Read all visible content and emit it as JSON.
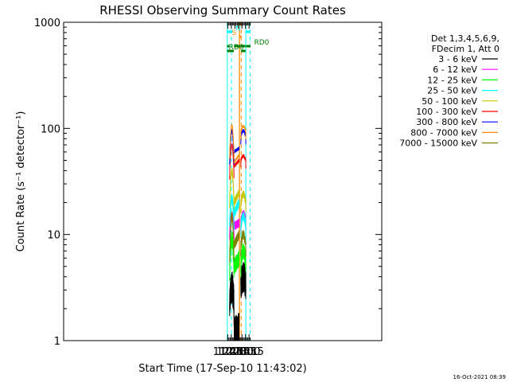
{
  "chart_data": {
    "type": "line",
    "title": "RHESSI Observing Summary Count Rates",
    "xlabel": "Start Time (17-Sep-10 11:43:02)",
    "ylabel": "Count Rate (s⁻¹ detector⁻¹)",
    "yscale": "log",
    "ylim": [
      1,
      1000
    ],
    "xlim_minutes": [
      11.73,
      1355.5
    ],
    "x_unit": "minutes of day (UT)",
    "x_ticks": [
      {
        "label": "11:45",
        "minute": 705
      },
      {
        "label": "12:00",
        "minute": 720
      },
      {
        "label": "12:15",
        "minute": 735
      },
      {
        "label": "12:30",
        "minute": 750
      },
      {
        "label": "12:45",
        "minute": 765
      },
      {
        "label": "13:00",
        "minute": 780
      },
      {
        "label": "13:15",
        "minute": 795
      }
    ],
    "y_ticks": [
      {
        "label": "1",
        "value": 1
      },
      {
        "label": "10",
        "value": 10
      },
      {
        "label": "100",
        "value": 100
      },
      {
        "label": "1000",
        "value": 1000
      }
    ],
    "legend_header": [
      "Det 1,3,4,5,6,9,",
      "FDecim 1, Att 0"
    ],
    "legend_position": "right",
    "timestamp": "16-Oct-2021 08:39",
    "grid": false,
    "segments_minutes": [
      [
        713.0,
        731.5
      ],
      [
        732.0,
        753.0
      ],
      [
        760.0,
        781.5
      ]
    ],
    "series": [
      {
        "name": "3 - 6 keV",
        "color": "#000000",
        "levels": [
          [
            2.3,
            3.2,
            2.4
          ],
          [
            1.2,
            1.4,
            1.3
          ],
          [
            3.4,
            4.0,
            3.0
          ]
        ],
        "noise": 0.35
      },
      {
        "name": "6 - 12 keV",
        "color": "#ff00ff",
        "levels": [
          [
            11.5,
            15.0,
            12.0
          ],
          [
            12.0,
            12.5,
            13.0
          ],
          [
            13.0,
            15.5,
            13.0
          ]
        ],
        "noise": 0.1
      },
      {
        "name": "12 - 25 keV",
        "color": "#00ff00",
        "levels": [
          [
            5.0,
            9.0,
            5.0
          ],
          [
            5.0,
            5.6,
            6.0
          ],
          [
            5.5,
            7.0,
            5.0
          ]
        ],
        "noise": 0.18
      },
      {
        "name": "25 - 50 keV",
        "color": "#00ffff",
        "levels": [
          [
            14.0,
            22.0,
            14.0
          ],
          [
            16.0,
            18.0,
            20.0
          ],
          [
            12.0,
            15.0,
            11.0
          ]
        ],
        "noise": 0.1
      },
      {
        "name": "50 - 100 keV",
        "color": "#c8c800",
        "levels": [
          [
            22.0,
            40.0,
            20.0
          ],
          [
            20.0,
            22.0,
            25.0
          ],
          [
            20.0,
            24.0,
            19.0
          ]
        ],
        "noise": 0.08
      },
      {
        "name": "100 - 300 keV",
        "color": "#ff0000",
        "levels": [
          [
            40.0,
            70.0,
            35.0
          ],
          [
            44.0,
            46.0,
            50.0
          ],
          [
            50.0,
            55.0,
            42.0
          ]
        ],
        "noise": 0.04
      },
      {
        "name": "300 - 800 keV",
        "color": "#0000ff",
        "levels": [
          [
            55.0,
            95.0,
            55.0
          ],
          [
            60.0,
            62.0,
            65.0
          ],
          [
            85.0,
            95.0,
            75.0
          ]
        ],
        "noise": 0.04
      },
      {
        "name": "800 - 7000 keV",
        "color": "#ff8c00",
        "levels": [
          [
            62.0,
            107.0,
            60.0
          ],
          [
            48.0,
            51.0,
            56.0
          ],
          [
            95.0,
            105.0,
            80.0
          ]
        ],
        "noise": 0.03
      },
      {
        "name": "7000 - 15000 keV",
        "color": "#808000",
        "levels": [
          [
            7.0,
            15.0,
            7.0
          ],
          [
            8.0,
            9.0,
            10.0
          ],
          [
            8.0,
            10.0,
            7.5
          ]
        ],
        "noise": 0.1
      }
    ],
    "flags": [
      {
        "label": "N",
        "color": "#00ffff",
        "y_level": 1,
        "intervals": [
          [
            702,
            724
          ],
          [
            782,
            801
          ]
        ]
      },
      {
        "label": "S",
        "color": "#ff8c00",
        "y_level": 2,
        "intervals": [
          [
            756,
            763
          ]
        ]
      },
      {
        "label": "RD0",
        "color": "#008000",
        "y_level": 4,
        "intervals": [
          [
            702,
            711
          ],
          [
            732,
            759
          ],
          [
            761,
            780
          ],
          [
            782,
            801
          ]
        ]
      },
      {
        "label": "RD6",
        "color": "#008000",
        "y_level": 5,
        "intervals": [
          [
            702,
            731
          ],
          [
            761,
            780
          ]
        ]
      }
    ],
    "vertical_markers": [
      {
        "minute": 703.0,
        "color": "#00ffff",
        "style": "solid"
      },
      {
        "minute": 720.5,
        "color": "#00ffff",
        "style": "dashed"
      },
      {
        "minute": 781.5,
        "color": "#00ffff",
        "style": "solid"
      },
      {
        "minute": 799.0,
        "color": "#00ffff",
        "style": "dashed"
      },
      {
        "minute": 754.0,
        "color": "#ff8c00",
        "style": "solid"
      },
      {
        "minute": 755.0,
        "color": "#ff8c00",
        "style": "solid"
      },
      {
        "minute": 762.0,
        "color": "#ff8c00",
        "style": "dashed"
      }
    ]
  }
}
